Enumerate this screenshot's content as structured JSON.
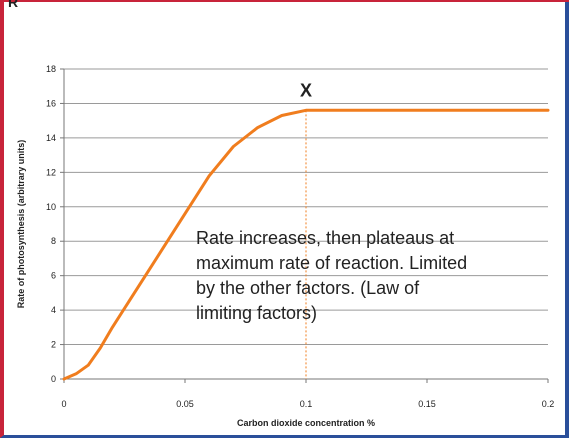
{
  "title": "R",
  "chart_data": {
    "type": "line",
    "title": "",
    "xlabel": "Carbon dioxide concentration %",
    "ylabel": "Rate of photosynthesis (arbitrary units)",
    "xlim": [
      0,
      0.2
    ],
    "ylim": [
      0,
      18
    ],
    "x_ticks": [
      "0",
      "0.05",
      "0.1",
      "0.15",
      "0.2"
    ],
    "y_ticks": [
      "0",
      "2",
      "4",
      "6",
      "8",
      "10",
      "12",
      "14",
      "16",
      "18"
    ],
    "grid": "horizontal",
    "line_color": "#f07d1e",
    "series": [
      {
        "x": [
          0,
          0.005,
          0.01,
          0.015,
          0.02,
          0.03,
          0.04,
          0.05,
          0.06,
          0.07,
          0.08,
          0.09,
          0.1,
          0.11,
          0.12,
          0.13,
          0.14,
          0.15,
          0.16,
          0.17,
          0.18,
          0.19,
          0.2
        ],
        "y": [
          0,
          0.3,
          0.8,
          1.8,
          3.0,
          5.2,
          7.4,
          9.6,
          11.8,
          13.5,
          14.6,
          15.3,
          15.6,
          15.6,
          15.6,
          15.6,
          15.6,
          15.6,
          15.6,
          15.6,
          15.6,
          15.6,
          15.6
        ]
      }
    ],
    "marker": {
      "label": "X",
      "x": 0.1,
      "y": 15.6
    },
    "guide_x": 0.1,
    "annotation": [
      "Rate increases, then plateaus at",
      "maximum rate of reaction. Limited",
      "by the other factors. (Law of",
      "limiting factors)"
    ]
  }
}
